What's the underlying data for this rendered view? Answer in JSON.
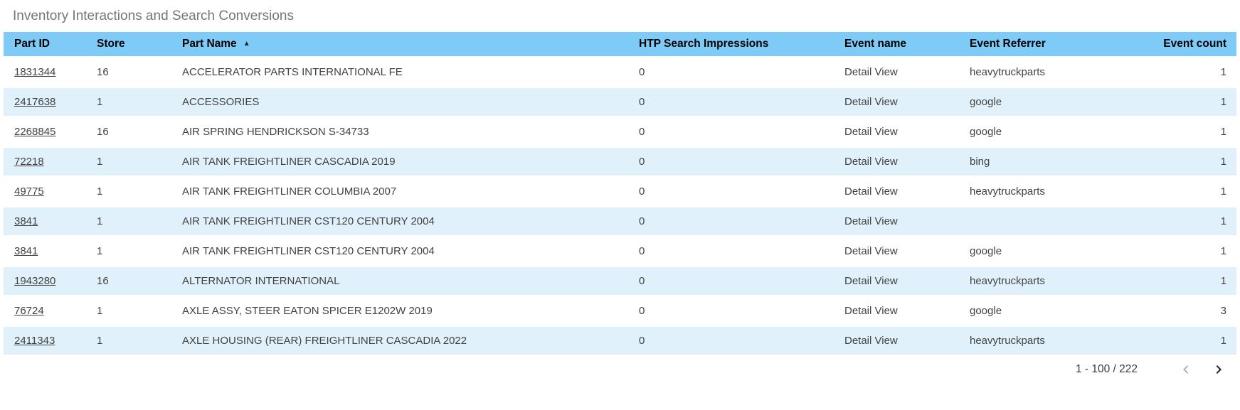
{
  "title": "Inventory Interactions and Search Conversions",
  "colors": {
    "header_bg": "#7FCBF7",
    "row_alt_bg": "#E1F1FC",
    "link_text": "#424242",
    "title_text": "#767676",
    "disabled_icon": "#b3b3b3",
    "active_icon": "#212121"
  },
  "table": {
    "columns": [
      {
        "id": "part_id",
        "label": "Part ID"
      },
      {
        "id": "store",
        "label": "Store"
      },
      {
        "id": "part_name",
        "label": "Part Name"
      },
      {
        "id": "htp_search_impressions",
        "label": "HTP Search Impressions"
      },
      {
        "id": "event_name",
        "label": "Event name"
      },
      {
        "id": "event_referrer",
        "label": "Event Referrer"
      },
      {
        "id": "event_count",
        "label": "Event count"
      }
    ],
    "sort": {
      "column": "Part Name",
      "direction": "ascending",
      "indicator": "▲"
    },
    "rows": [
      [
        "1831344",
        "16",
        "ACCELERATOR PARTS INTERNATIONAL FE",
        "0",
        "Detail View",
        "heavytruckparts",
        "1"
      ],
      [
        "2417638",
        "1",
        "ACCESSORIES",
        "0",
        "Detail View",
        "google",
        "1"
      ],
      [
        "2268845",
        "16",
        "AIR SPRING HENDRICKSON S-34733",
        "0",
        "Detail View",
        "google",
        "1"
      ],
      [
        "72218",
        "1",
        "AIR TANK FREIGHTLINER CASCADIA 2019",
        "0",
        "Detail View",
        "bing",
        "1"
      ],
      [
        "49775",
        "1",
        "AIR TANK FREIGHTLINER COLUMBIA 2007",
        "0",
        "Detail View",
        "heavytruckparts",
        "1"
      ],
      [
        "3841",
        "1",
        "AIR TANK FREIGHTLINER CST120 CENTURY 2004",
        "0",
        "Detail View",
        "",
        "1"
      ],
      [
        "3841",
        "1",
        "AIR TANK FREIGHTLINER CST120 CENTURY 2004",
        "0",
        "Detail View",
        "google",
        "1"
      ],
      [
        "1943280",
        "16",
        "ALTERNATOR INTERNATIONAL",
        "0",
        "Detail View",
        "heavytruckparts",
        "1"
      ],
      [
        "76724",
        "1",
        "AXLE ASSY, STEER EATON SPICER E1202W 2019",
        "0",
        "Detail View",
        "google",
        "3"
      ],
      [
        "2411343",
        "1",
        "AXLE HOUSING (REAR) FREIGHTLINER CASCADIA 2022",
        "0",
        "Detail View",
        "heavytruckparts",
        "1"
      ]
    ]
  },
  "pagination": {
    "range_label": "1 - 100 / 222",
    "prev_icon": "chevron-left-icon",
    "next_icon": "chevron-right-icon",
    "prev_enabled": false,
    "next_enabled": true
  }
}
